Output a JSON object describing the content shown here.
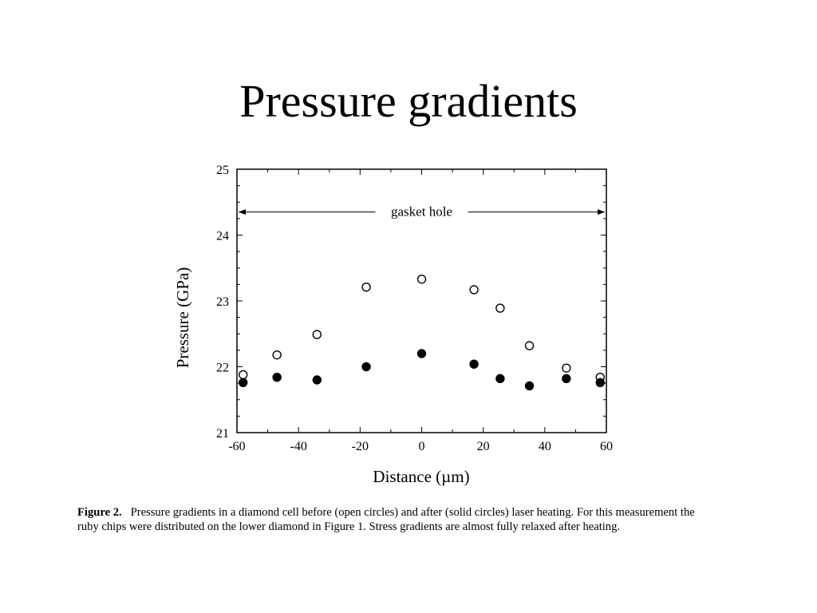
{
  "slide": {
    "title": "Pressure gradients"
  },
  "caption": {
    "label": "Figure 2.",
    "text": "Pressure gradients in a diamond cell before (open circles) and after (solid circles) laser heating. For this measurement the ruby chips were distributed on the lower diamond in Figure 1. Stress gradients are almost fully relaxed after heating."
  },
  "chart_data": {
    "type": "scatter",
    "xlabel": "Distance (µm)",
    "ylabel": "Pressure (GPa)",
    "xlim": [
      -60,
      60
    ],
    "ylim": [
      21,
      25
    ],
    "xticks": [
      -60,
      -40,
      -20,
      0,
      20,
      40,
      60
    ],
    "yticks": [
      21,
      22,
      23,
      24,
      25
    ],
    "grid": false,
    "annotation": {
      "text": "gasket hole",
      "y": 24.35,
      "x_from": -60,
      "x_to": 60
    },
    "series": [
      {
        "marker": "open-circle",
        "points": [
          [
            -58,
            21.88
          ],
          [
            -47,
            22.18
          ],
          [
            -34,
            22.49
          ],
          [
            -18,
            23.21
          ],
          [
            0,
            23.33
          ],
          [
            17,
            23.17
          ],
          [
            25.5,
            22.89
          ],
          [
            35,
            22.32
          ],
          [
            47,
            21.98
          ],
          [
            58,
            21.84
          ]
        ]
      },
      {
        "marker": "solid-circle",
        "points": [
          [
            -58,
            21.76
          ],
          [
            -47,
            21.84
          ],
          [
            -34,
            21.8
          ],
          [
            -18,
            22.0
          ],
          [
            0,
            22.2
          ],
          [
            17,
            22.04
          ],
          [
            25.5,
            21.82
          ],
          [
            35,
            21.71
          ],
          [
            47,
            21.82
          ],
          [
            58,
            21.76
          ]
        ]
      }
    ]
  }
}
